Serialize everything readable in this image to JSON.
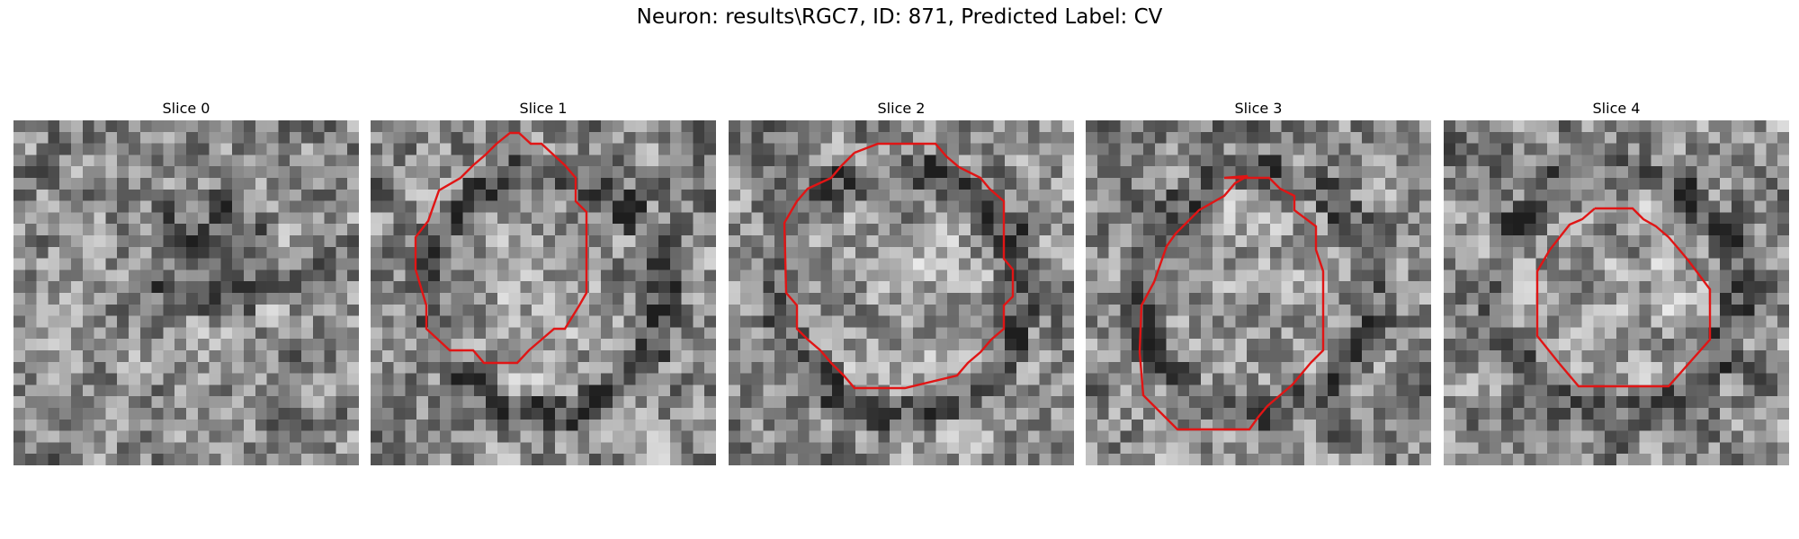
{
  "figure": {
    "title": "Neuron: results\\RGC7, ID: 871, Predicted Label: CV"
  },
  "overlay_color": "#e01515",
  "panels": [
    {
      "title": "Slice 0",
      "seed": 11,
      "has_outline": false
    },
    {
      "title": "Slice 1",
      "seed": 23,
      "has_outline": true
    },
    {
      "title": "Slice 2",
      "seed": 37,
      "has_outline": true
    },
    {
      "title": "Slice 3",
      "seed": 53,
      "has_outline": true
    },
    {
      "title": "Slice 4",
      "seed": 71,
      "has_outline": true
    }
  ]
}
